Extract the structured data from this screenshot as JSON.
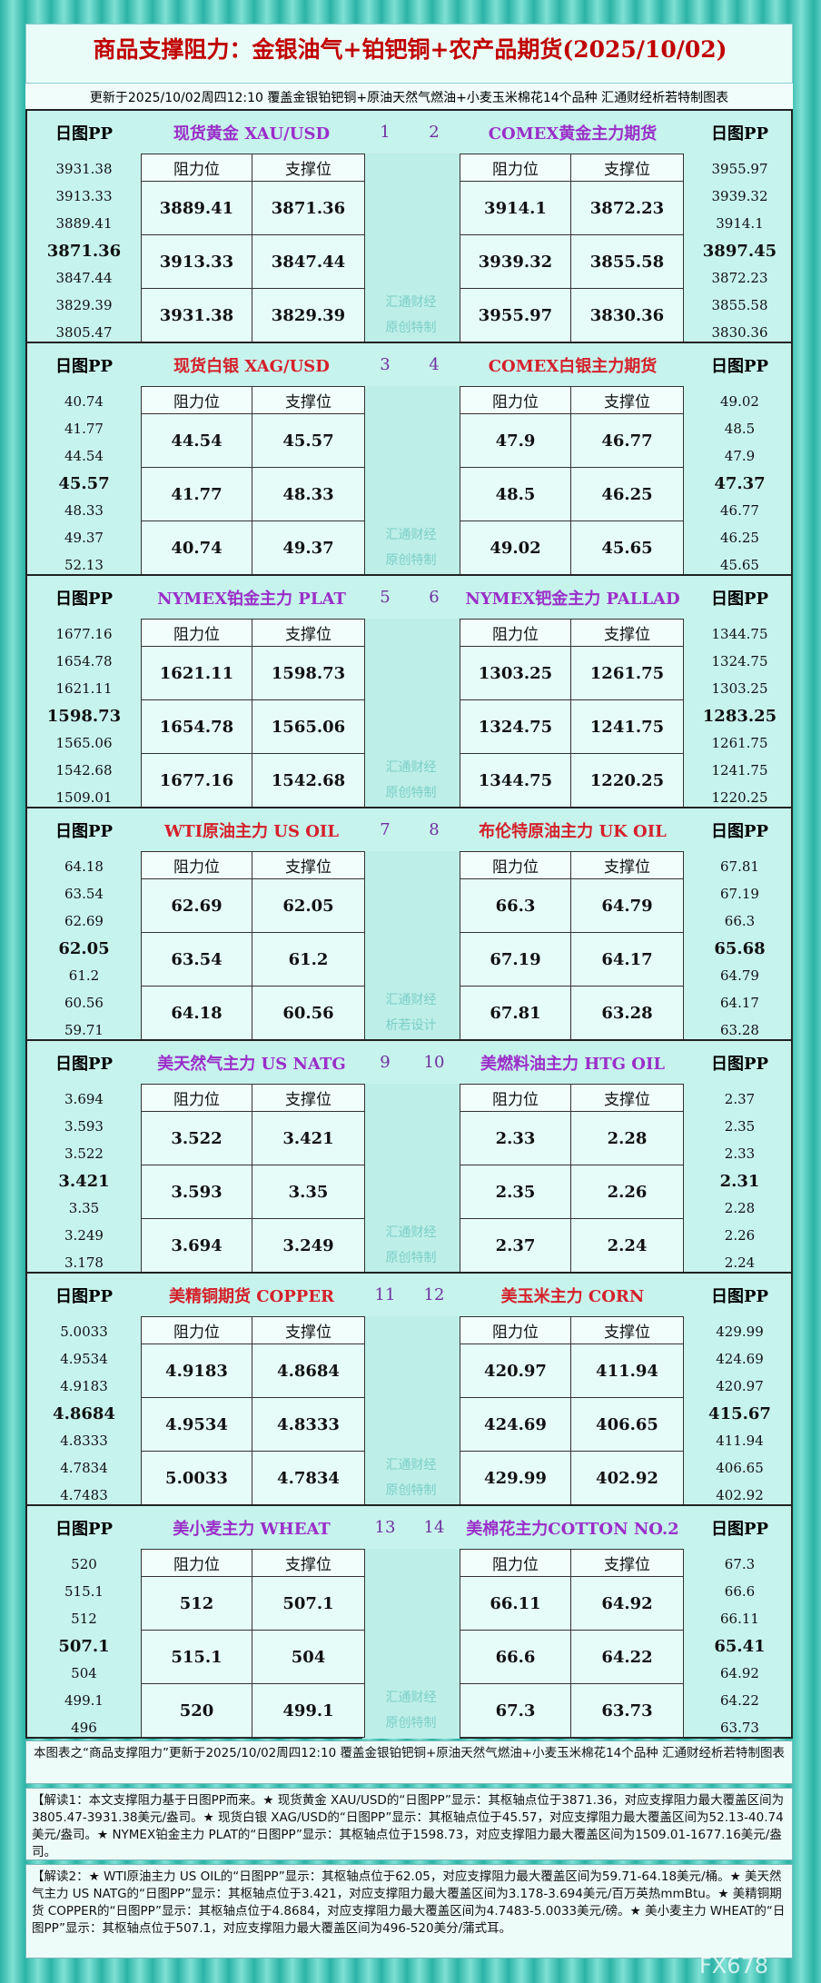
{
  "header": {
    "title": "商品支撑阻力：金银油气+铂钯铜+农产品期货(2025/10/02)",
    "subtitle": "更新于2025/10/02周四12:10 覆盖金银铂钯铜+原油天然气燃油+小麦玉米棉花14个品种 汇通财经析若特制图表"
  },
  "labels": {
    "pp": "日图PP",
    "resistance": "阻力位",
    "support": "支撑位"
  },
  "blocks": [
    {
      "left": {
        "name": "现货黄金 XAU/USD",
        "num": "1",
        "pp": [
          "3931.38",
          "3913.33",
          "3889.41",
          "3871.36",
          "3847.44",
          "3829.39",
          "3805.47"
        ],
        "table": [
          [
            "3889.41",
            "3871.36"
          ],
          [
            "3913.33",
            "3847.44"
          ],
          [
            "3931.38",
            "3829.39"
          ]
        ]
      },
      "right": {
        "name": "COMEX黄金主力期货",
        "num": "2",
        "pp": [
          "3955.97",
          "3939.32",
          "3914.1",
          "3897.45",
          "3872.23",
          "3855.58",
          "3830.36"
        ],
        "table": [
          [
            "3914.1",
            "3872.23"
          ],
          [
            "3939.32",
            "3855.58"
          ],
          [
            "3955.97",
            "3830.36"
          ]
        ]
      },
      "watermark": [
        "汇通财经",
        "原创特制"
      ]
    },
    {
      "left": {
        "name": "现货白银 XAG/USD",
        "num": "3",
        "pp": [
          "40.74",
          "41.77",
          "44.54",
          "45.57",
          "48.33",
          "49.37",
          "52.13"
        ],
        "table": [
          [
            "44.54",
            "45.57"
          ],
          [
            "41.77",
            "48.33"
          ],
          [
            "40.74",
            "49.37"
          ]
        ]
      },
      "right": {
        "name": "COMEX白银主力期货",
        "num": "4",
        "pp": [
          "49.02",
          "48.5",
          "47.9",
          "47.37",
          "46.77",
          "46.25",
          "45.65"
        ],
        "table": [
          [
            "47.9",
            "46.77"
          ],
          [
            "48.5",
            "46.25"
          ],
          [
            "49.02",
            "45.65"
          ]
        ]
      },
      "watermark": [
        "汇通财经",
        "原创特制"
      ]
    },
    {
      "left": {
        "name": "NYMEX铂金主力 PLAT",
        "num": "5",
        "pp": [
          "1677.16",
          "1654.78",
          "1621.11",
          "1598.73",
          "1565.06",
          "1542.68",
          "1509.01"
        ],
        "table": [
          [
            "1621.11",
            "1598.73"
          ],
          [
            "1654.78",
            "1565.06"
          ],
          [
            "1677.16",
            "1542.68"
          ]
        ]
      },
      "right": {
        "name": "NYMEX钯金主力 PALLAD",
        "num": "6",
        "pp": [
          "1344.75",
          "1324.75",
          "1303.25",
          "1283.25",
          "1261.75",
          "1241.75",
          "1220.25"
        ],
        "table": [
          [
            "1303.25",
            "1261.75"
          ],
          [
            "1324.75",
            "1241.75"
          ],
          [
            "1344.75",
            "1220.25"
          ]
        ]
      },
      "watermark": [
        "汇通财经",
        "原创特制"
      ]
    },
    {
      "left": {
        "name": "WTI原油主力 US OIL",
        "num": "7",
        "pp": [
          "64.18",
          "63.54",
          "62.69",
          "62.05",
          "61.2",
          "60.56",
          "59.71"
        ],
        "table": [
          [
            "62.69",
            "62.05"
          ],
          [
            "63.54",
            "61.2"
          ],
          [
            "64.18",
            "60.56"
          ]
        ]
      },
      "right": {
        "name": "布伦特原油主力 UK OIL",
        "num": "8",
        "pp": [
          "67.81",
          "67.19",
          "66.3",
          "65.68",
          "64.79",
          "64.17",
          "63.28"
        ],
        "table": [
          [
            "66.3",
            "64.79"
          ],
          [
            "67.19",
            "64.17"
          ],
          [
            "67.81",
            "63.28"
          ]
        ]
      },
      "watermark": [
        "汇通财经",
        "析若设计"
      ]
    },
    {
      "left": {
        "name": "美天然气主力 US NATG",
        "num": "9",
        "pp": [
          "3.694",
          "3.593",
          "3.522",
          "3.421",
          "3.35",
          "3.249",
          "3.178"
        ],
        "table": [
          [
            "3.522",
            "3.421"
          ],
          [
            "3.593",
            "3.35"
          ],
          [
            "3.694",
            "3.249"
          ]
        ]
      },
      "right": {
        "name": "美燃料油主力 HTG OIL",
        "num": "10",
        "pp": [
          "2.37",
          "2.35",
          "2.33",
          "2.31",
          "2.28",
          "2.26",
          "2.24"
        ],
        "table": [
          [
            "2.33",
            "2.28"
          ],
          [
            "2.35",
            "2.26"
          ],
          [
            "2.37",
            "2.24"
          ]
        ]
      },
      "watermark": [
        "汇通财经",
        "原创特制"
      ]
    },
    {
      "left": {
        "name": "美精铜期货 COPPER",
        "num": "11",
        "pp": [
          "5.0033",
          "4.9534",
          "4.9183",
          "4.8684",
          "4.8333",
          "4.7834",
          "4.7483"
        ],
        "table": [
          [
            "4.9183",
            "4.8684"
          ],
          [
            "4.9534",
            "4.8333"
          ],
          [
            "5.0033",
            "4.7834"
          ]
        ]
      },
      "right": {
        "name": "美玉米主力 CORN",
        "num": "12",
        "pp": [
          "429.99",
          "424.69",
          "420.97",
          "415.67",
          "411.94",
          "406.65",
          "402.92"
        ],
        "table": [
          [
            "420.97",
            "411.94"
          ],
          [
            "424.69",
            "406.65"
          ],
          [
            "429.99",
            "402.92"
          ]
        ]
      },
      "watermark": [
        "汇通财经",
        "原创特制"
      ]
    },
    {
      "left": {
        "name": "美小麦主力 WHEAT",
        "num": "13",
        "pp": [
          "520",
          "515.1",
          "512",
          "507.1",
          "504",
          "499.1",
          "496"
        ],
        "table": [
          [
            "512",
            "507.1"
          ],
          [
            "515.1",
            "504"
          ],
          [
            "520",
            "499.1"
          ]
        ]
      },
      "right": {
        "name": "美棉花主力COTTON NO.2",
        "num": "14",
        "pp": [
          "67.3",
          "66.6",
          "66.11",
          "65.41",
          "64.92",
          "64.22",
          "63.73"
        ],
        "table": [
          [
            "66.11",
            "64.92"
          ],
          [
            "66.6",
            "64.22"
          ],
          [
            "67.3",
            "63.73"
          ]
        ]
      },
      "watermark": [
        "汇通财经",
        "原创特制"
      ]
    }
  ],
  "footer": {
    "note": "本图表之“商品支撑阻力”更新于2025/10/02周四12:10 覆盖金银铂钯铜+原油天然气燃油+小麦玉米棉花14个品种 汇通财经析若特制图表",
    "paragraphs": [
      "【解读1：本文支撑阻力基于日图PP而来。★ 现货黄金 XAU/USD的“日图PP”显示：其枢轴点位于3871.36，对应支撑阻力最大覆盖区间为3805.47-3931.38美元/盎司。★ 现货白银 XAG/USD的“日图PP”显示：其枢轴点位于45.57，对应支撑阻力最大覆盖区间为52.13-40.74美元/盎司。★ NYMEX铂金主力 PLAT的“日图PP”显示：其枢轴点位于1598.73，对应支撑阻力最大覆盖区间为1509.01-1677.16美元/盎司。",
      "【解读2：★ WTI原油主力 US OIL的“日图PP”显示：其枢轴点位于62.05，对应支撑阻力最大覆盖区间为59.71-64.18美元/桶。★ 美天然气主力 US NATG的“日图PP”显示：其枢轴点位于3.421，对应支撑阻力最大覆盖区间为3.178-3.694美元/百万英热mmBtu。★ 美精铜期货 COPPER的“日图PP”显示：其枢轴点位于4.8684，对应支撑阻力最大覆盖区间为4.7483-5.0033美元/磅。★ 美小麦主力 WHEAT的“日图PP”显示：其枢轴点位于507.1，对应支撑阻力最大覆盖区间为496-520美分/蒲式耳。"
    ],
    "watermark": "FX678"
  }
}
